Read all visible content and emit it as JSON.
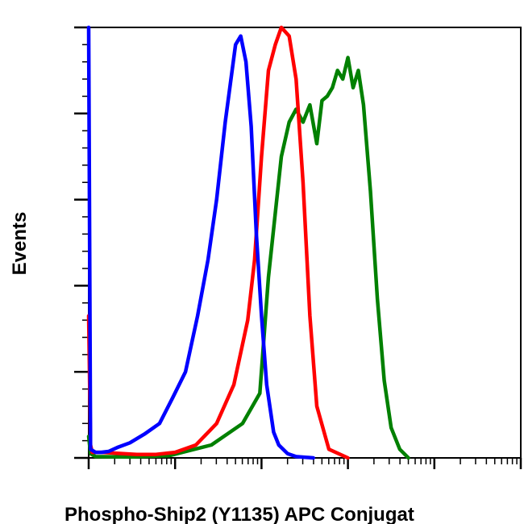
{
  "chart_data": {
    "type": "line",
    "title": "",
    "xlabel": "Phospho-Ship2 (Y1135) APC Conjugat",
    "ylabel": "Events",
    "x_scale": "log",
    "xlim": [
      1,
      100000
    ],
    "ylim": [
      0,
      100
    ],
    "grid": false,
    "legend": "none",
    "series": [
      {
        "color": "#0000ff",
        "x": [
          1.0,
          1.05,
          1.2,
          1.4,
          1.7,
          2.2,
          3.0,
          4.4,
          6.6,
          9.4,
          13.2,
          18.2,
          24.0,
          30.2,
          38.0,
          43.6,
          50.1,
          57.5,
          66.1,
          75.9,
          87.1,
          100.0,
          114.8,
          138.0,
          158.5,
          200.0,
          251.2,
          398.1
        ],
        "y": [
          100,
          2,
          1.3,
          1.3,
          1.5,
          2.5,
          3.5,
          5.5,
          8,
          14,
          20,
          33,
          46,
          60,
          78,
          87,
          96,
          98,
          92,
          77,
          52,
          33,
          17,
          6,
          3,
          1,
          0.3,
          0
        ]
      },
      {
        "color": "#ff0000",
        "x": [
          1.0,
          1.05,
          1.1,
          1.4,
          2.0,
          3.6,
          6.0,
          10.0,
          17.4,
          30.2,
          47.9,
          69.2,
          83.2,
          100.0,
          120.2,
          144.5,
          169.8,
          208.9,
          251.2,
          302.0,
          363.1,
          436.5,
          602.6,
          1000.0
        ],
        "y": [
          33,
          3,
          1.3,
          1.3,
          1.1,
          0.8,
          0.8,
          1.3,
          3,
          8,
          17,
          32,
          46,
          70,
          90,
          96,
          100,
          98,
          88,
          64,
          33,
          12,
          2,
          0
        ]
      },
      {
        "color": "#008000",
        "x": [
          1.0,
          1.05,
          1.2,
          3.0,
          8.5,
          26.3,
          60.3,
          95.5,
          120.2,
          169.8,
          208.9,
          251.2,
          302.0,
          363.1,
          436.5,
          501.2,
          575.4,
          660.7,
          758.6,
          870.9,
          1000.0,
          1148.2,
          1318.3,
          1513.6,
          1819.7,
          2188.0,
          2630.3,
          3162.3,
          3981.1,
          5011.9
        ],
        "y": [
          5,
          1,
          0.3,
          0.2,
          0.5,
          3,
          8,
          15,
          42,
          70,
          78,
          81,
          78,
          82,
          73,
          83,
          84,
          86,
          90,
          88,
          93,
          86,
          90,
          82,
          62,
          37,
          18,
          7,
          2,
          0
        ]
      }
    ],
    "x_ticks": [
      1,
      10,
      100,
      1000,
      10000,
      100000
    ],
    "y_ticks": [
      0,
      20,
      40,
      60,
      80,
      100
    ]
  }
}
